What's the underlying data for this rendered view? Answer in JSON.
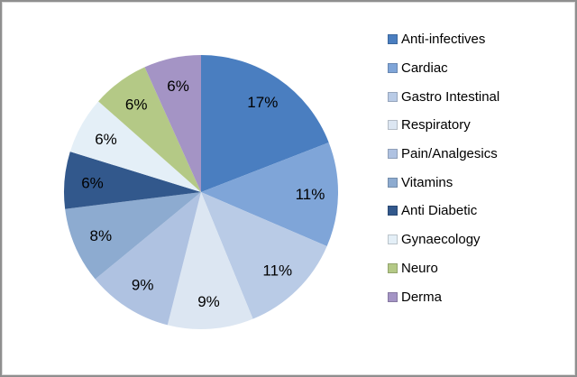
{
  "chart_data": {
    "type": "pie",
    "categories": [
      "Anti-infectives",
      "Cardiac",
      "Gastro Intestinal",
      "Respiratory",
      "Pain/Analgesics",
      "Vitamins",
      "Anti Diabetic",
      "Gynaecology",
      "Neuro",
      "Derma"
    ],
    "values": [
      17,
      11,
      11,
      9,
      9,
      8,
      6,
      6,
      6,
      6
    ],
    "labels": [
      "17%",
      "11%",
      "11%",
      "9%",
      "9%",
      "8%",
      "6%",
      "6%",
      "6%",
      "6%"
    ],
    "colors": [
      "#4a7ec0",
      "#7fa5d8",
      "#b9cbe6",
      "#dce6f2",
      "#afc2e1",
      "#8dabd0",
      "#32588c",
      "#e4eff7",
      "#b4c986",
      "#a494c5"
    ],
    "title": "",
    "xlabel": "",
    "ylabel": "",
    "start_angle_deg": 0,
    "direction": "clockwise",
    "legend_position": "right",
    "label_color": "#000000",
    "background_color": "#ffffff",
    "frame_border_color": "#8f8f8f"
  }
}
